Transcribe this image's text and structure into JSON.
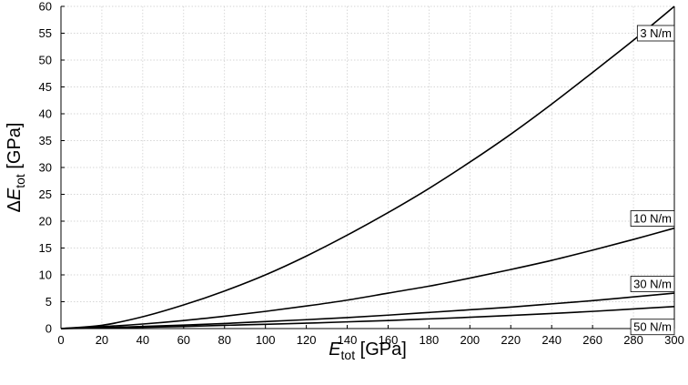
{
  "chart_data": {
    "type": "line",
    "xlabel": {
      "prefix": "",
      "main": "E",
      "sub": "tot",
      "suffix": " [GPa]"
    },
    "ylabel": {
      "prefix": "Δ",
      "main": "E",
      "sub": "tot",
      "suffix": " [GPa]"
    },
    "xlim": [
      0,
      300
    ],
    "ylim": [
      0,
      60
    ],
    "xticks": [
      0,
      20,
      40,
      60,
      80,
      100,
      120,
      140,
      160,
      180,
      200,
      220,
      240,
      260,
      280,
      300
    ],
    "yticks": [
      0,
      5,
      10,
      15,
      20,
      25,
      30,
      35,
      40,
      45,
      50,
      55,
      60
    ],
    "grid": true,
    "x": [
      0,
      20,
      40,
      60,
      80,
      100,
      120,
      140,
      160,
      180,
      200,
      220,
      240,
      260,
      280,
      300
    ],
    "series": [
      {
        "name": "3 N/m",
        "values": [
          0,
          0.6,
          2.2,
          4.4,
          7.0,
          10.0,
          13.5,
          17.4,
          21.6,
          26.1,
          31.0,
          36.2,
          41.8,
          47.7,
          53.7,
          60.0
        ]
      },
      {
        "name": "10 N/m",
        "values": [
          0,
          0.35,
          0.85,
          1.5,
          2.3,
          3.2,
          4.2,
          5.3,
          6.6,
          7.9,
          9.4,
          11.0,
          12.7,
          14.6,
          16.6,
          18.7
        ]
      },
      {
        "name": "30 N/m",
        "values": [
          0,
          0.17,
          0.4,
          0.65,
          0.95,
          1.3,
          1.65,
          2.05,
          2.5,
          3.0,
          3.5,
          4.0,
          4.6,
          5.2,
          5.9,
          6.6
        ]
      },
      {
        "name": "50 N/m",
        "values": [
          0,
          0.1,
          0.25,
          0.4,
          0.6,
          0.8,
          1.0,
          1.25,
          1.5,
          1.8,
          2.1,
          2.45,
          2.8,
          3.2,
          3.65,
          4.1
        ]
      }
    ],
    "label_anchor_y": [
      55,
      20.5,
      8.3,
      0.3
    ]
  }
}
